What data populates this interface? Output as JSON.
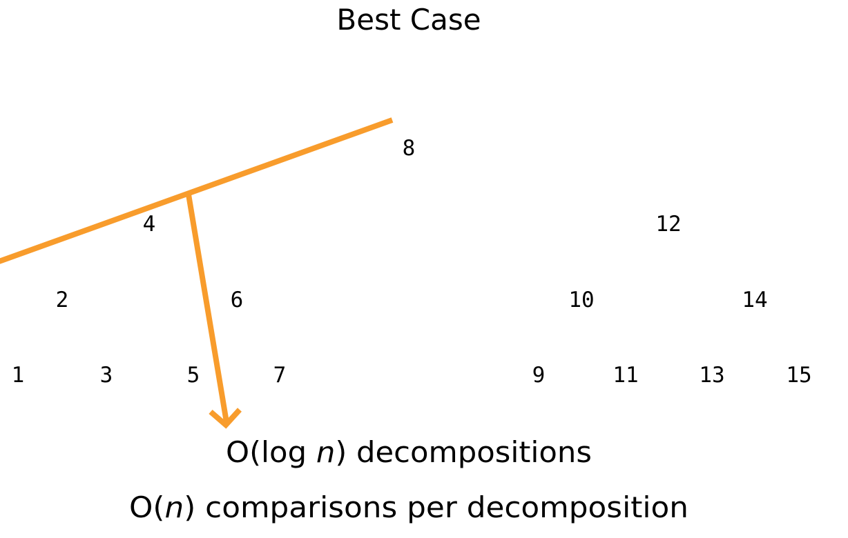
{
  "title": "Best Case",
  "accent_color": "#F89C2C",
  "tree_nodes": [
    "8",
    "4",
    "12",
    "2",
    "6",
    "10",
    "14",
    "1",
    "3",
    "5",
    "7",
    "9",
    "11",
    "13",
    "15"
  ],
  "captions": {
    "line1": {
      "pre": "O(log ",
      "var": "n",
      "post": ") decompositions"
    },
    "line2": {
      "pre": "O(",
      "var": "n",
      "post": ") comparisons per decomposition"
    }
  }
}
